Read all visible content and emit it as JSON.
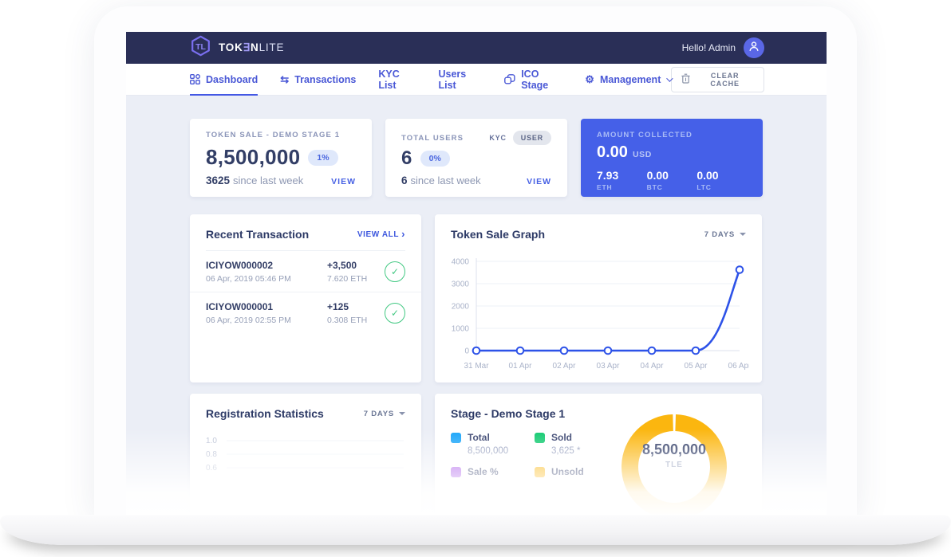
{
  "navbar": {
    "logo": {
      "part1": "TOK",
      "part2": "∃",
      "part3": "N",
      "part4": "LITE"
    },
    "greeting": "Hello! Admin"
  },
  "tabs": [
    {
      "label": "Dashboard",
      "active": true
    },
    {
      "label": "Transactions",
      "active": false
    },
    {
      "label": "KYC List",
      "active": false
    },
    {
      "label": "Users List",
      "active": false
    },
    {
      "label": "ICO Stage",
      "active": false
    },
    {
      "label": "Management",
      "active": false
    }
  ],
  "toolbar": {
    "clear_cache": "CLEAR CACHE"
  },
  "icons": {
    "transactions": "⇆",
    "gear": "⚙",
    "check": "✓",
    "chevron_right": "›"
  },
  "cards": {
    "token_sale": {
      "label": "TOKEN SALE - DEMO STAGE 1",
      "value": "8,500,000",
      "badge": "1%",
      "delta": "3625",
      "delta_suffix": "since last week",
      "link": "VIEW"
    },
    "total_users": {
      "label": "TOTAL USERS",
      "toggle_kyc": "KYC",
      "toggle_user": "USER",
      "value": "6",
      "badge": "0%",
      "delta": "6",
      "delta_suffix": "since last week",
      "link": "VIEW"
    },
    "amount_collected": {
      "label": "AMOUNT COLLECTED",
      "value": "0.00",
      "unit": "USD",
      "coins": [
        {
          "value": "7.93",
          "unit": "ETH"
        },
        {
          "value": "0.00",
          "unit": "BTC"
        },
        {
          "value": "0.00",
          "unit": "LTC"
        }
      ]
    }
  },
  "recent_transactions": {
    "title": "Recent Transaction",
    "view_all": "VIEW ALL",
    "items": [
      {
        "id": "ICIYOW000002",
        "date": "06 Apr, 2019 05:46 PM",
        "amount": "+3,500",
        "eth": "7.620 ETH"
      },
      {
        "id": "ICIYOW000001",
        "date": "06 Apr, 2019 02:55 PM",
        "amount": "+125",
        "eth": "0.308 ETH"
      }
    ]
  },
  "token_sale_graph": {
    "title": "Token Sale Graph",
    "range": "7 DAYS"
  },
  "registration_statistics": {
    "title": "Registration Statistics",
    "range": "7 DAYS"
  },
  "stage_card": {
    "title": "Stage - Demo Stage 1",
    "legend": [
      {
        "label": "Total",
        "value": "8,500,000",
        "color": "#15a3f9"
      },
      {
        "label": "Sold",
        "value": "3,625 *",
        "color": "#0fc96e"
      },
      {
        "label": "Sale %",
        "value": "",
        "color": "#a857ea"
      },
      {
        "label": "Unsold",
        "value": "",
        "color": "#fbb60f"
      }
    ],
    "center_value": "8,500,000",
    "center_unit": "TLE"
  },
  "chart_data": [
    {
      "id": "token_sale",
      "type": "line",
      "title": "Token Sale Graph",
      "categories": [
        "31 Mar",
        "01 Apr",
        "02 Apr",
        "03 Apr",
        "04 Apr",
        "05 Apr",
        "06 Apr"
      ],
      "values": [
        0,
        0,
        0,
        0,
        0,
        0,
        3625
      ],
      "ylim": [
        0,
        4000
      ],
      "yticks": [
        0,
        1000,
        2000,
        3000,
        4000
      ],
      "line_color": "#2d52e8",
      "grid": true,
      "legend_position": "none"
    },
    {
      "id": "registration",
      "type": "line",
      "title": "Registration Statistics",
      "yticks_visible": [
        "1.0",
        "0.8",
        "0.6"
      ],
      "note": "chart area cut off by screen fade; only y-axis labels visible"
    },
    {
      "id": "stage_donut",
      "type": "pie",
      "title": "Stage - Demo Stage 1",
      "segments": [
        {
          "name": "Unsold",
          "value": 8496375,
          "color": "#fbb60f"
        },
        {
          "name": "Sold",
          "value": 3625,
          "color": "#0fc96e"
        }
      ],
      "center_value": "8,500,000",
      "center_unit": "TLE"
    }
  ],
  "colors": {
    "navbar_bg": "#2a2f57",
    "accent_blue": "#4560e8",
    "link_blue": "#4761e4",
    "amber": "#fbb60f",
    "green_check": "#43c983",
    "content_bg": "#ebeef6"
  }
}
